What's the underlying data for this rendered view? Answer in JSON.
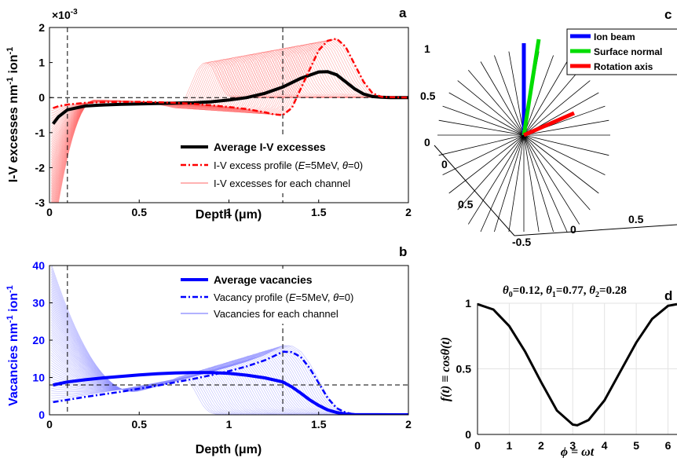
{
  "chart_data": [
    {
      "panel": "a",
      "type": "line",
      "xlabel": "Depth (μm)",
      "ylabel": "I-V excesses nm-1 ion-1",
      "ylabel_main": "I-V excesses nm",
      "ylabel_sup1": "-1",
      "ylabel_mid": " ion",
      "ylabel_sup2": "-1",
      "y_multiplier": "×10",
      "y_multiplier_exp": "-3",
      "xlim": [
        0,
        2
      ],
      "ylim": [
        -3,
        2
      ],
      "xticks": [
        "0",
        "0.5",
        "1",
        "1.5",
        "2"
      ],
      "yticks": [
        "-3",
        "-2",
        "-1",
        "0",
        "1",
        "2"
      ],
      "dashed_vlines": [
        0.1,
        1.3
      ],
      "dashed_hline": 0,
      "series": [
        {
          "name": "Average I-V excesses",
          "color": "#000000",
          "style": "solid-thick",
          "x": [
            0.02,
            0.05,
            0.1,
            0.2,
            0.3,
            0.4,
            0.5,
            0.6,
            0.7,
            0.8,
            0.9,
            1.0,
            1.1,
            1.2,
            1.3,
            1.4,
            1.5,
            1.55,
            1.6,
            1.65,
            1.7,
            1.75,
            1.8,
            1.85,
            1.9,
            2.0
          ],
          "y": [
            -0.75,
            -0.55,
            -0.35,
            -0.24,
            -0.21,
            -0.19,
            -0.18,
            -0.17,
            -0.16,
            -0.15,
            -0.12,
            -0.07,
            0.0,
            0.12,
            0.3,
            0.55,
            0.73,
            0.74,
            0.65,
            0.45,
            0.25,
            0.1,
            0.03,
            0.01,
            0.0,
            0.0
          ]
        },
        {
          "name": "I-V excess profile (E=5MeV, θ=0)",
          "legend_prefix": "I-V excess profile (",
          "legend_e": "E",
          "legend_mid": "=5MeV, ",
          "legend_theta": "θ",
          "legend_suffix": "=0)",
          "color": "#ff0000",
          "style": "dashdot",
          "x": [
            0.02,
            0.05,
            0.1,
            0.2,
            0.3,
            0.4,
            0.5,
            0.6,
            0.7,
            0.8,
            0.9,
            1.0,
            1.1,
            1.2,
            1.25,
            1.3,
            1.35,
            1.4,
            1.45,
            1.5,
            1.55,
            1.6,
            1.65,
            1.7,
            1.75,
            1.8,
            1.85,
            2.0
          ],
          "y": [
            -0.3,
            -0.25,
            -0.2,
            -0.15,
            -0.13,
            -0.12,
            -0.12,
            -0.13,
            -0.15,
            -0.18,
            -0.22,
            -0.27,
            -0.33,
            -0.42,
            -0.48,
            -0.5,
            -0.3,
            0.25,
            0.8,
            1.35,
            1.62,
            1.68,
            1.45,
            0.95,
            0.45,
            0.12,
            0.02,
            0.0
          ]
        },
        {
          "name": "I-V excesses for each channel",
          "color": "#ff6666",
          "style": "thin-family"
        }
      ]
    },
    {
      "panel": "b",
      "type": "line",
      "xlabel": "Depth (μm)",
      "ylabel": "Vacancies nm-1 ion-1",
      "ylabel_main": "Vacancies nm",
      "ylabel_sup1": "-1",
      "ylabel_mid": " ion",
      "ylabel_sup2": "-1",
      "xlim": [
        0,
        2
      ],
      "ylim": [
        0,
        40
      ],
      "xticks": [
        "0",
        "0.5",
        "1",
        "1.5",
        "2"
      ],
      "yticks": [
        "0",
        "10",
        "20",
        "30",
        "40"
      ],
      "dashed_vlines": [
        0.1,
        1.3
      ],
      "dashed_hline": 8,
      "series": [
        {
          "name": "Average vacancies",
          "color": "#0000ff",
          "style": "solid-thick",
          "x": [
            0.02,
            0.1,
            0.2,
            0.3,
            0.4,
            0.5,
            0.6,
            0.7,
            0.8,
            0.9,
            1.0,
            1.1,
            1.2,
            1.3,
            1.35,
            1.4,
            1.45,
            1.5,
            1.55,
            1.6,
            1.65,
            1.7,
            2.0
          ],
          "y": [
            8.0,
            8.8,
            9.4,
            9.9,
            10.3,
            10.7,
            11.0,
            11.2,
            11.3,
            11.3,
            11.1,
            10.6,
            9.9,
            8.8,
            7.5,
            5.8,
            4.0,
            2.5,
            1.3,
            0.6,
            0.2,
            0.05,
            0.0
          ]
        },
        {
          "name": "Vacancy profile (E=5MeV, θ=0)",
          "legend_prefix": "Vacancy profile (",
          "legend_e": "E",
          "legend_mid": "=5MeV, ",
          "legend_theta": "θ",
          "legend_suffix": "=0)",
          "color": "#0000ff",
          "style": "dashdot",
          "x": [
            0.02,
            0.1,
            0.2,
            0.3,
            0.4,
            0.5,
            0.6,
            0.7,
            0.8,
            0.9,
            1.0,
            1.1,
            1.2,
            1.25,
            1.3,
            1.35,
            1.4,
            1.45,
            1.5,
            1.55,
            1.6,
            1.65,
            1.7,
            1.8,
            2.0
          ],
          "y": [
            3.4,
            4.0,
            4.8,
            5.5,
            6.2,
            7.0,
            7.8,
            8.7,
            9.6,
            10.6,
            11.7,
            13.0,
            14.6,
            15.7,
            16.9,
            16.8,
            15.5,
            12.5,
            8.5,
            4.5,
            1.8,
            0.6,
            0.1,
            0.0,
            0.0
          ]
        },
        {
          "name": "Vacancies for each channel",
          "color": "#8888ff",
          "style": "thin-family"
        }
      ]
    },
    {
      "panel": "c",
      "type": "other",
      "zticks": [
        "0",
        "0.5",
        "1"
      ],
      "xticks": [
        "0",
        "0.5"
      ],
      "yticks": [
        "-0.5",
        "0",
        "0.5"
      ],
      "legend": [
        {
          "name": "Ion beam",
          "color": "#0000ff"
        },
        {
          "name": "Surface normal",
          "color": "#00dd00"
        },
        {
          "name": "Rotation axis",
          "color": "#ff0000"
        }
      ]
    },
    {
      "panel": "d",
      "type": "line",
      "title": "θ0=0.12, θ1=0.77, θ2=0.28",
      "title_parts": [
        "θ",
        "0",
        "=0.12, ",
        "θ",
        "1",
        "=0.77, ",
        "θ",
        "2",
        "=0.28"
      ],
      "xlabel": "ϕ = ωt",
      "ylabel": "f(t) ≡ cosθ(t)",
      "xlim": [
        0,
        6.2832
      ],
      "ylim": [
        0,
        1
      ],
      "xticks": [
        "0",
        "1",
        "2",
        "3",
        "4",
        "5",
        "6"
      ],
      "yticks": [
        "0",
        "0.5",
        "1"
      ],
      "grid": true,
      "series": [
        {
          "color": "#000000",
          "style": "solid",
          "x": [
            0,
            0.5,
            1.0,
            1.5,
            2.0,
            2.5,
            3.0,
            3.1416,
            3.5,
            4.0,
            4.5,
            5.0,
            5.5,
            6.0,
            6.2832
          ],
          "y": [
            0.993,
            0.952,
            0.826,
            0.632,
            0.4,
            0.182,
            0.075,
            0.07,
            0.11,
            0.26,
            0.48,
            0.7,
            0.88,
            0.98,
            0.993
          ]
        }
      ]
    }
  ],
  "panel_labels": {
    "a": "a",
    "b": "b",
    "c": "c",
    "d": "d"
  }
}
